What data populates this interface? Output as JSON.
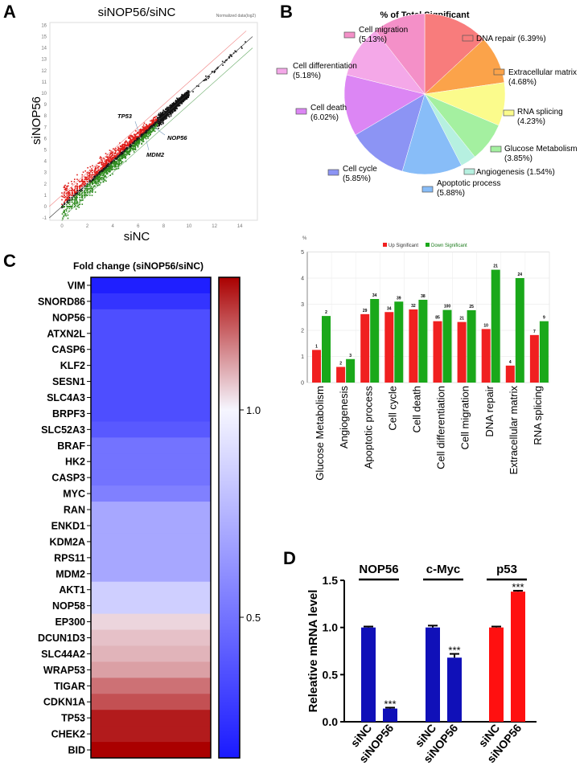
{
  "panel_labels": {
    "a": "A",
    "b": "B",
    "c": "C",
    "d": "D"
  },
  "chart_data": [
    {
      "panel": "A",
      "type": "scatter",
      "title": "siNOP56/siNC",
      "subtitle": "Normalized data(log2)",
      "xlabel": "siNC",
      "ylabel": "siNOP56",
      "xlim": [
        -1,
        15
      ],
      "ylim": [
        -1,
        16
      ],
      "xticks": [
        0,
        2,
        4,
        6,
        8,
        10,
        12,
        14
      ],
      "yticks": [
        -1,
        0,
        1,
        2,
        3,
        4,
        5,
        6,
        7,
        8,
        9,
        10,
        11,
        12,
        13,
        14,
        15,
        16
      ],
      "annotations": [
        "TP53",
        "NOP56",
        "MDM2"
      ],
      "colors": {
        "up": "#e0201c",
        "down": "#2e8b1e",
        "unchanged": "#111111",
        "upper_line": "#f08080",
        "lower_line": "#66aa66"
      }
    },
    {
      "panel": "B",
      "type": "pie",
      "title": "% of Total Significant",
      "slices": [
        {
          "label": "DNA repair (6.39%)",
          "value": 6.39,
          "color": "#f87c7c"
        },
        {
          "label": "Extracellular matrix (4.68%)",
          "value": 4.68,
          "color": "#fba34a"
        },
        {
          "label": "RNA splicing (4.23%)",
          "value": 4.23,
          "color": "#fbfb8c"
        },
        {
          "label": "Glucose Metabolism (3.85%)",
          "value": 3.85,
          "color": "#a4f0a0"
        },
        {
          "label": "Angiogenesis (1.54%)",
          "value": 1.54,
          "color": "#b6f0e0"
        },
        {
          "label": "Apoptotic process (5.88%)",
          "value": 5.88,
          "color": "#88bdf8"
        },
        {
          "label": "Cell cycle (5.85%)",
          "value": 5.85,
          "color": "#8c94f4"
        },
        {
          "label": "Cell death (6.02%)",
          "value": 6.02,
          "color": "#dc86f4"
        },
        {
          "label": "Cell differentiation (5.18%)",
          "value": 5.18,
          "color": "#f4a8e8"
        },
        {
          "label": "Cell migration (5.13%)",
          "value": 5.13,
          "color": "#f490c8"
        }
      ]
    },
    {
      "panel": "B",
      "type": "bar",
      "ylabel": "%",
      "ylim": [
        0,
        5
      ],
      "yticks": [
        0,
        1,
        2,
        3,
        4,
        5
      ],
      "grid": true,
      "legend_placement": "top",
      "categories": [
        "Glucose Metabolism",
        "Angiogenesis",
        "Apoptotic process",
        "Cell cycle",
        "Cell death",
        "Cell differentiation",
        "Cell migration",
        "DNA repair",
        "Extracellular matrix",
        "RNA splicing"
      ],
      "series": [
        {
          "name": "Up Significant",
          "color": "#f02020",
          "values": [
            1.25,
            0.6,
            2.62,
            2.7,
            2.8,
            2.35,
            2.32,
            2.05,
            0.65,
            1.82
          ],
          "labels": [
            "1",
            "2",
            "29",
            "34",
            "32",
            "85",
            "21",
            "10",
            "4",
            "7"
          ]
        },
        {
          "name": "Down Significant",
          "color": "#1aa81a",
          "values": [
            2.55,
            0.9,
            3.2,
            3.1,
            3.17,
            2.78,
            2.77,
            4.32,
            4.0,
            2.35
          ],
          "labels": [
            "2",
            "3",
            "34",
            "39",
            "38",
            "100",
            "25",
            "21",
            "24",
            "9"
          ]
        }
      ]
    },
    {
      "panel": "C",
      "type": "heatmap",
      "title": "Fold change (siNOP56/siNC)",
      "colorbar_ticks": [
        "1.0",
        "0.5"
      ],
      "colorbar_range": [
        0.16,
        1.37
      ],
      "colors": {
        "low": "#1a1aff",
        "mid": "#f4f4ff",
        "high": "#aa0000"
      },
      "rows": [
        "VIM",
        "SNORD86",
        "NOP56",
        "ATXN2L",
        "CASP6",
        "KLF2",
        "SESN1",
        "SLC4A3",
        "BRPF3",
        "SLC52A3",
        "BRAF",
        "HK2",
        "CASP3",
        "MYC",
        "RAN",
        "ENKD1",
        "KDM2A",
        "RPS11",
        "MDM2",
        "AKT1",
        "NOP58",
        "EP300",
        "DCUN1D3",
        "SLC44A2",
        "WRAP53",
        "TIGAR",
        "CDKN1A",
        "TP53",
        "CHEK2",
        "BID"
      ],
      "values": [
        0.18,
        0.26,
        0.36,
        0.36,
        0.36,
        0.36,
        0.36,
        0.36,
        0.36,
        0.4,
        0.5,
        0.5,
        0.5,
        0.55,
        0.7,
        0.7,
        0.7,
        0.7,
        0.7,
        0.85,
        0.85,
        1.05,
        1.08,
        1.1,
        1.13,
        1.2,
        1.25,
        1.33,
        1.33,
        1.37
      ]
    },
    {
      "panel": "D",
      "type": "bar",
      "ylabel": "Releative mRNA level",
      "ylim": [
        0,
        1.5
      ],
      "yticks": [
        "0.0",
        "0.5",
        "1.0",
        "1.5"
      ],
      "groups": [
        {
          "name": "NOP56",
          "color": "#1010b8",
          "categories": [
            "siNC",
            "siNOP56"
          ],
          "values": [
            1.0,
            0.14
          ],
          "errors": [
            0.01,
            0.01
          ],
          "significance": [
            "",
            "***"
          ]
        },
        {
          "name": "c-Myc",
          "color": "#1010b8",
          "categories": [
            "siNC",
            "siNOP56"
          ],
          "values": [
            1.0,
            0.68
          ],
          "errors": [
            0.02,
            0.04
          ],
          "significance": [
            "",
            "***"
          ]
        },
        {
          "name": "p53",
          "color": "#ff1010",
          "categories": [
            "siNC",
            "siNOP56"
          ],
          "values": [
            1.0,
            1.38
          ],
          "errors": [
            0.01,
            0.01
          ],
          "significance": [
            "",
            "***"
          ]
        }
      ]
    }
  ]
}
